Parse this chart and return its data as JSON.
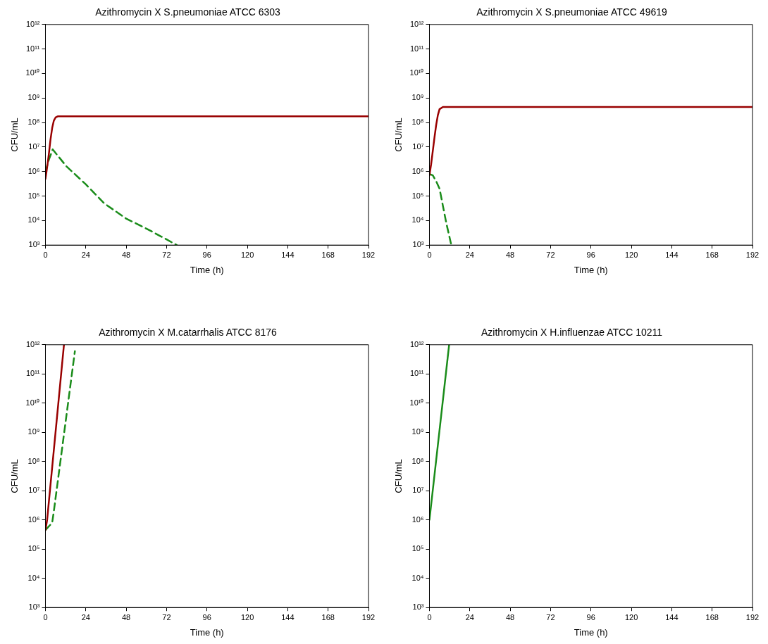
{
  "chart_data": [
    {
      "type": "line",
      "title": "Azithromycin X S.pneumoniae ATCC 6303",
      "xlabel": "Time (h)",
      "ylabel": "CFU/mL",
      "log": "y",
      "grid": false,
      "legend": false,
      "marker": "none",
      "xlim": [
        0,
        192
      ],
      "xticks": [
        0,
        24,
        48,
        72,
        96,
        120,
        144,
        168,
        192
      ],
      "ylim": [
        1000,
        1000000000000
      ],
      "yticks": [
        {
          "value": 1000,
          "label": "10³"
        },
        {
          "value": 10000,
          "label": "10⁴"
        },
        {
          "value": 100000,
          "label": "10⁵"
        },
        {
          "value": 1000000,
          "label": "10⁶"
        },
        {
          "value": 10000000,
          "label": "10⁷"
        },
        {
          "value": 100000000,
          "label": "10⁸"
        },
        {
          "value": 1000000000,
          "label": "10⁹"
        },
        {
          "value": 10000000000,
          "label": "10¹⁰"
        },
        {
          "value": 100000000000,
          "label": "10¹¹"
        },
        {
          "value": 1000000000000,
          "label": "10¹²"
        }
      ],
      "series": [
        {
          "color": "#990000",
          "line_style": "solid",
          "x": [
            0,
            1,
            2,
            3,
            4,
            5,
            6,
            7.5,
            192
          ],
          "values": [
            500000,
            1500000,
            5000000,
            20000000,
            60000000,
            120000000,
            160000000,
            180000000,
            180000000
          ]
        },
        {
          "color": "#1a8c1a",
          "line_style": "dashed",
          "x": [
            0,
            2,
            4.3,
            12.6,
            24,
            35,
            48,
            60,
            72,
            78
          ],
          "values": [
            1000000,
            3000000,
            8000000,
            1600000,
            300000,
            50000,
            12000,
            4700,
            1700,
            1000
          ]
        }
      ]
    },
    {
      "type": "line",
      "title": "Azithromycin X S.pneumoniae ATCC 49619",
      "xlabel": "Time (h)",
      "ylabel": "CFU/mL",
      "log": "y",
      "grid": false,
      "legend": false,
      "marker": "none",
      "xlim": [
        0,
        192
      ],
      "xticks": [
        0,
        24,
        48,
        72,
        96,
        120,
        144,
        168,
        192
      ],
      "ylim": [
        1000,
        1000000000000
      ],
      "yticks": [
        {
          "value": 1000,
          "label": "10³"
        },
        {
          "value": 10000,
          "label": "10⁴"
        },
        {
          "value": 100000,
          "label": "10⁵"
        },
        {
          "value": 1000000,
          "label": "10⁶"
        },
        {
          "value": 10000000,
          "label": "10⁷"
        },
        {
          "value": 100000000,
          "label": "10⁸"
        },
        {
          "value": 1000000000,
          "label": "10⁹"
        },
        {
          "value": 10000000000,
          "label": "10¹⁰"
        },
        {
          "value": 100000000000,
          "label": "10¹¹"
        },
        {
          "value": 1000000000000,
          "label": "10¹²"
        }
      ],
      "series": [
        {
          "color": "#990000",
          "line_style": "solid",
          "x": [
            0,
            1,
            2,
            3,
            4,
            5,
            6,
            8,
            192
          ],
          "values": [
            700000,
            2000000,
            7000000,
            25000000,
            80000000,
            200000000,
            350000000,
            430000000,
            430000000
          ]
        },
        {
          "color": "#1a8c1a",
          "line_style": "dashed",
          "x": [
            0,
            2,
            4,
            6,
            8,
            10,
            13
          ],
          "values": [
            800000,
            700000,
            400000,
            200000,
            40000,
            8000,
            1000
          ]
        }
      ]
    },
    {
      "type": "line",
      "title": "Azithromycin X M.catarrhalis ATCC 8176",
      "xlabel": "Time (h)",
      "ylabel": "CFU/mL",
      "log": "y",
      "grid": false,
      "legend": false,
      "marker": "none",
      "xlim": [
        0,
        192
      ],
      "xticks": [
        0,
        24,
        48,
        72,
        96,
        120,
        144,
        168,
        192
      ],
      "ylim": [
        1000,
        1000000000000
      ],
      "yticks": [
        {
          "value": 1000,
          "label": "10³"
        },
        {
          "value": 10000,
          "label": "10⁴"
        },
        {
          "value": 100000,
          "label": "10⁵"
        },
        {
          "value": 1000000,
          "label": "10⁶"
        },
        {
          "value": 10000000,
          "label": "10⁷"
        },
        {
          "value": 100000000,
          "label": "10⁸"
        },
        {
          "value": 1000000000,
          "label": "10⁹"
        },
        {
          "value": 10000000000,
          "label": "10¹⁰"
        },
        {
          "value": 100000000000,
          "label": "10¹¹"
        },
        {
          "value": 1000000000000,
          "label": "10¹²"
        }
      ],
      "series": [
        {
          "color": "#990000",
          "line_style": "solid",
          "x": [
            0,
            1,
            11
          ],
          "values": [
            450000,
            1000000,
            1000000000000
          ]
        },
        {
          "color": "#1a8c1a",
          "line_style": "dashed",
          "x": [
            0,
            4,
            5,
            17.5
          ],
          "values": [
            450000,
            800000,
            2000000,
            600000000000
          ]
        }
      ]
    },
    {
      "type": "line",
      "title": "Azithromycin X H.influenzae ATCC 10211",
      "xlabel": "Time (h)",
      "ylabel": "CFU/mL",
      "log": "y",
      "grid": false,
      "legend": false,
      "marker": "none",
      "xlim": [
        0,
        192
      ],
      "xticks": [
        0,
        24,
        48,
        72,
        96,
        120,
        144,
        168,
        192
      ],
      "ylim": [
        1000,
        1000000000000
      ],
      "yticks": [
        {
          "value": 1000,
          "label": "10³"
        },
        {
          "value": 10000,
          "label": "10⁴"
        },
        {
          "value": 100000,
          "label": "10⁵"
        },
        {
          "value": 1000000,
          "label": "10⁶"
        },
        {
          "value": 10000000,
          "label": "10⁷"
        },
        {
          "value": 100000000,
          "label": "10⁸"
        },
        {
          "value": 1000000000,
          "label": "10⁹"
        },
        {
          "value": 10000000000,
          "label": "10¹⁰"
        },
        {
          "value": 100000000000,
          "label": "10¹¹"
        },
        {
          "value": 1000000000000,
          "label": "10¹²"
        }
      ],
      "series": [
        {
          "color": "#1a8c1a",
          "line_style": "solid",
          "x": [
            0,
            11.7
          ],
          "values": [
            1000000,
            1000000000000
          ]
        }
      ]
    }
  ]
}
